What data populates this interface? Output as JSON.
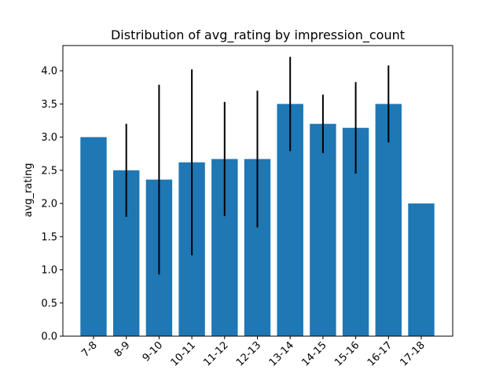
{
  "chart_data": {
    "type": "bar",
    "title": "Distribution of avg_rating by impression_count",
    "xlabel": "",
    "ylabel": "avg_rating",
    "categories": [
      "7-8",
      "8-9",
      "9-10",
      "10-11",
      "11-12",
      "12-13",
      "13-14",
      "14-15",
      "15-16",
      "16-17",
      "17-18"
    ],
    "values": [
      3.0,
      2.5,
      2.36,
      2.62,
      2.67,
      2.67,
      3.5,
      3.2,
      3.14,
      3.5,
      2.0
    ],
    "error": [
      0,
      0.7,
      1.43,
      1.4,
      0.86,
      1.03,
      0.71,
      0.44,
      0.69,
      0.58,
      0
    ],
    "yticks": [
      "0.0",
      "0.5",
      "1.0",
      "1.5",
      "2.0",
      "2.5",
      "3.0",
      "3.5",
      "4.0"
    ],
    "ylim": [
      0,
      4.38
    ],
    "bar_color": "#1f77b4",
    "error_color": "#000000",
    "grid": false,
    "legend": "none"
  }
}
